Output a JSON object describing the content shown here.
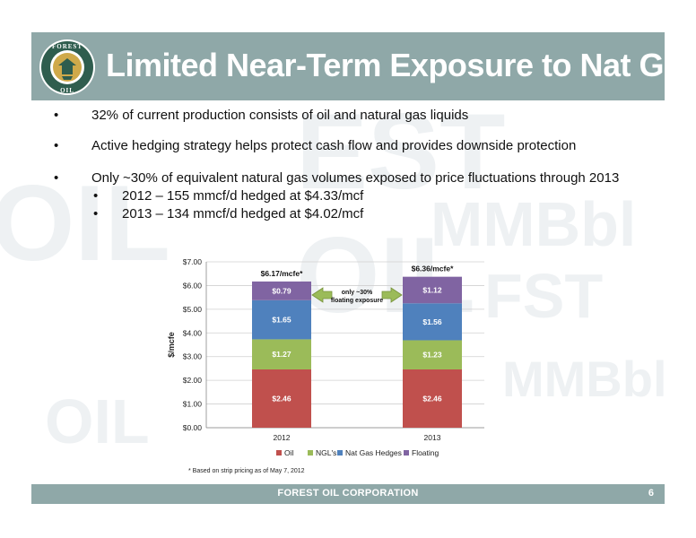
{
  "slide": {
    "title": "Limited Near-Term Exposure to Nat Gas",
    "bullets": [
      "32% of current production consists of oil and natural gas liquids",
      "Active hedging strategy helps protect cash flow and provides downside protection",
      "Only ~30% of equivalent natural gas volumes exposed to price fluctuations through 2013"
    ],
    "sub_bullets": [
      "2012 – 155 mmcf/d hedged at $4.33/mcf",
      "2013 – 134 mmcf/d hedged at $4.02/mcf"
    ],
    "bullet_glyph": "•",
    "footnote": "*  Based on strip pricing as of May 7, 2012",
    "footer": "FOREST OIL CORPORATION",
    "page_number": "6",
    "logo_text_top": "FOREST",
    "logo_text_bottom": "OIL",
    "header_color": "#8fa8a8"
  },
  "chart_data": {
    "type": "bar",
    "stacked": true,
    "categories": [
      "2012",
      "2013"
    ],
    "series": [
      {
        "name": "Oil",
        "values": [
          2.46,
          2.46
        ],
        "labels": [
          "$2.46",
          "$2.46"
        ],
        "color": "#c0504d"
      },
      {
        "name": "NGL's",
        "values": [
          1.27,
          1.23
        ],
        "labels": [
          "$1.27",
          "$1.23"
        ],
        "color": "#9bbb59"
      },
      {
        "name": "Nat Gas Hedges",
        "values": [
          1.65,
          1.56
        ],
        "labels": [
          "$1.65",
          "$1.56"
        ],
        "color": "#4f81bd"
      },
      {
        "name": "Floating",
        "values": [
          0.79,
          1.12
        ],
        "labels": [
          "$0.79",
          "$1.12"
        ],
        "color": "#8064a2"
      }
    ],
    "totals": [
      "$6.17/mcfe*",
      "$6.36/mcfe*"
    ],
    "ylabel": "$/mcfe",
    "ylim": [
      0,
      7
    ],
    "yticks": [
      "$0.00",
      "$1.00",
      "$2.00",
      "$3.00",
      "$4.00",
      "$5.00",
      "$6.00",
      "$7.00"
    ],
    "annotation": [
      "only ~30%",
      "floating exposure"
    ],
    "grid": true,
    "legend": "bottom"
  }
}
